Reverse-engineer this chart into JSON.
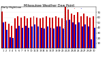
{
  "title": "Milwaukee Weather Dew Point",
  "subtitle": "Daily High/Low",
  "days": [
    1,
    2,
    3,
    4,
    5,
    6,
    7,
    8,
    9,
    10,
    11,
    12,
    13,
    14,
    15,
    16,
    17,
    18,
    19,
    20,
    21,
    22,
    23,
    24,
    25,
    26,
    27,
    28,
    29,
    30
  ],
  "high": [
    72,
    52,
    48,
    44,
    58,
    62,
    60,
    62,
    58,
    60,
    62,
    60,
    58,
    60,
    62,
    60,
    60,
    62,
    60,
    58,
    80,
    75,
    68,
    65,
    70,
    62,
    68,
    62,
    60,
    62
  ],
  "low": [
    50,
    36,
    22,
    20,
    38,
    44,
    40,
    44,
    40,
    42,
    46,
    42,
    40,
    38,
    42,
    40,
    38,
    42,
    42,
    38,
    54,
    56,
    50,
    46,
    50,
    42,
    46,
    42,
    18,
    40
  ],
  "high_color": "#cc0000",
  "low_color": "#0000cc",
  "bg_color": "#ffffff",
  "ylim": [
    0,
    80
  ],
  "yticks": [
    10,
    20,
    30,
    40,
    50,
    60,
    70
  ],
  "dashed_vline_x": [
    19.5,
    20.5
  ],
  "bar_width": 0.42
}
